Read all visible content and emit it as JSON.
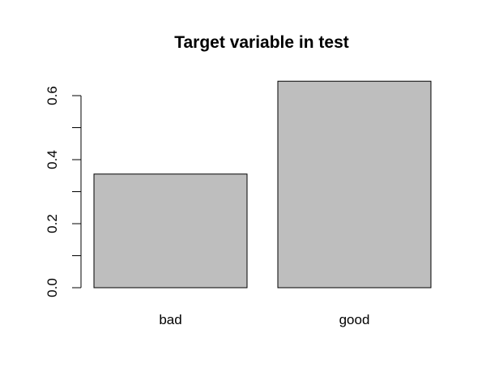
{
  "chart_data": {
    "type": "bar",
    "title": "Target variable in test",
    "xlabel": "",
    "ylabel": "",
    "categories": [
      "bad",
      "good"
    ],
    "values": [
      0.355,
      0.645
    ],
    "ylim": [
      0,
      0.65
    ],
    "yticks": [
      0.0,
      0.2,
      0.4,
      0.6
    ],
    "ytick_labels": [
      "0.0",
      "0.2",
      "0.4",
      "0.6"
    ],
    "minor_yticks": [
      0.1,
      0.3,
      0.5
    ],
    "bar_color": "#bebebe",
    "grid": false,
    "legend": "none"
  }
}
